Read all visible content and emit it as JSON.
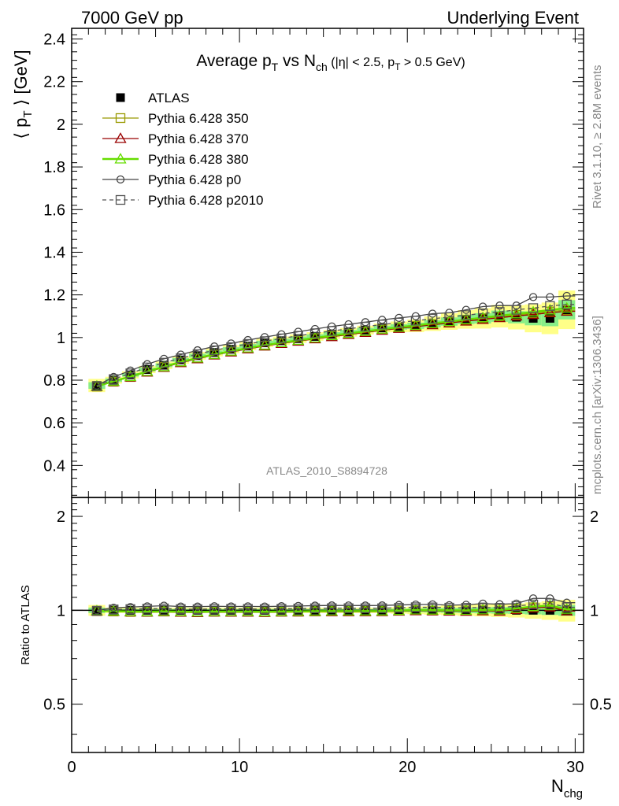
{
  "header": {
    "left": "7000 GeV pp",
    "right": "Underlying Event"
  },
  "title": {
    "main": "Average p",
    "main_sub": "T",
    "vs": " vs N",
    "vs_sub": "ch",
    "cut_open": " (|η| < 2.5, p",
    "cut_sub": "T",
    "cut_close": " > 0.5 GeV)"
  },
  "side": {
    "rivet": "Rivet 3.1.10, ≥ 2.8M events",
    "mcplots": "mcplots.cern.ch [arXiv:1306.3436]"
  },
  "watermark": "ATLAS_2010_S8894728",
  "chart_data": {
    "type": "scatter",
    "main": {
      "ylabel": "⟨ p_T ⟩ [GeV]",
      "ylabel_parts": [
        "⟨ p",
        "T",
        " ⟩ [GeV]"
      ],
      "ylim": [
        0.25,
        2.45
      ],
      "yticks": [
        0.4,
        0.6,
        0.8,
        1.0,
        1.2,
        1.4,
        1.6,
        1.8,
        2.0,
        2.2,
        2.4
      ],
      "ytick_labels": [
        "0.4",
        "0.6",
        "0.8",
        "1",
        "1.2",
        "1.4",
        "1.6",
        "1.8",
        "2",
        "2.2",
        "2.4"
      ]
    },
    "ratio": {
      "ylabel": "Ratio to ATLAS",
      "ylim": [
        0.35,
        2.3
      ],
      "log_scale": true,
      "yticks": [
        0.5,
        1,
        2
      ],
      "ytick_labels": [
        "0.5",
        "1",
        "2"
      ]
    },
    "x": {
      "label": "N_chg",
      "label_parts": [
        "N",
        "chg"
      ],
      "xlim": [
        0,
        30.5
      ],
      "xticks": [
        0,
        10,
        20,
        30
      ],
      "xtick_labels": [
        "0",
        "10",
        "20",
        "30"
      ],
      "values": [
        1.5,
        2.5,
        3.5,
        4.5,
        5.5,
        6.5,
        7.5,
        8.5,
        9.5,
        10.5,
        11.5,
        12.5,
        13.5,
        14.5,
        15.5,
        16.5,
        17.5,
        18.5,
        19.5,
        20.5,
        21.5,
        22.5,
        23.5,
        24.5,
        25.5,
        26.5,
        27.5,
        28.5,
        29.5
      ]
    },
    "series": [
      {
        "name": "ATLAS",
        "color": "#000000",
        "marker": "filled-square",
        "line": "none",
        "values": [
          0.775,
          0.8,
          0.825,
          0.85,
          0.87,
          0.895,
          0.915,
          0.93,
          0.945,
          0.96,
          0.975,
          0.985,
          0.995,
          1.005,
          1.015,
          1.025,
          1.035,
          1.045,
          1.05,
          1.055,
          1.065,
          1.075,
          1.085,
          1.09,
          1.1,
          1.095,
          1.09,
          1.09,
          1.13
        ],
        "band_inner_color": "#88ee88",
        "band_outer_color": "#ffff88"
      },
      {
        "name": "Pythia 6.428 350",
        "color": "#999900",
        "marker": "open-square",
        "line": "solid",
        "values": [
          0.77,
          0.793,
          0.815,
          0.84,
          0.862,
          0.885,
          0.903,
          0.92,
          0.935,
          0.95,
          0.962,
          0.975,
          0.985,
          0.997,
          1.008,
          1.018,
          1.028,
          1.038,
          1.047,
          1.055,
          1.063,
          1.072,
          1.082,
          1.09,
          1.098,
          1.106,
          1.114,
          1.122,
          1.128
        ]
      },
      {
        "name": "Pythia 6.428 370",
        "color": "#990000",
        "marker": "open-triangle",
        "line": "solid",
        "values": [
          0.77,
          0.793,
          0.815,
          0.838,
          0.86,
          0.882,
          0.9,
          0.918,
          0.932,
          0.947,
          0.96,
          0.972,
          0.983,
          0.994,
          1.004,
          1.014,
          1.024,
          1.034,
          1.043,
          1.051,
          1.06,
          1.068,
          1.077,
          1.085,
          1.093,
          1.101,
          1.108,
          1.116,
          1.123
        ]
      },
      {
        "name": "Pythia 6.428 380",
        "color": "#66dd00",
        "marker": "open-triangle",
        "line": "solid-thick",
        "values": [
          0.772,
          0.795,
          0.817,
          0.841,
          0.863,
          0.886,
          0.904,
          0.921,
          0.936,
          0.951,
          0.964,
          0.976,
          0.987,
          0.998,
          1.009,
          1.019,
          1.029,
          1.039,
          1.048,
          1.057,
          1.066,
          1.075,
          1.084,
          1.093,
          1.102,
          1.111,
          1.12,
          1.129,
          1.138
        ]
      },
      {
        "name": "Pythia 6.428 p0",
        "color": "#444444",
        "marker": "open-circle",
        "line": "solid",
        "values": [
          0.775,
          0.815,
          0.845,
          0.875,
          0.9,
          0.92,
          0.94,
          0.958,
          0.972,
          0.988,
          1.002,
          1.015,
          1.027,
          1.04,
          1.052,
          1.062,
          1.072,
          1.083,
          1.092,
          1.1,
          1.112,
          1.116,
          1.13,
          1.145,
          1.15,
          1.15,
          1.19,
          1.19,
          1.195
        ]
      },
      {
        "name": "Pythia 6.428 p2010",
        "color": "#555555",
        "marker": "open-square",
        "line": "dashed",
        "values": [
          0.772,
          0.805,
          0.832,
          0.86,
          0.882,
          0.903,
          0.922,
          0.94,
          0.955,
          0.97,
          0.983,
          0.996,
          1.008,
          1.02,
          1.031,
          1.041,
          1.051,
          1.061,
          1.07,
          1.079,
          1.088,
          1.096,
          1.105,
          1.113,
          1.12,
          1.13,
          1.138,
          1.148,
          1.155
        ]
      }
    ],
    "band_half_width": [
      0.02,
      0.01,
      0.01,
      0.01,
      0.01,
      0.01,
      0.01,
      0.01,
      0.01,
      0.01,
      0.01,
      0.01,
      0.01,
      0.01,
      0.01,
      0.01,
      0.01,
      0.01,
      0.012,
      0.014,
      0.016,
      0.018,
      0.02,
      0.022,
      0.024,
      0.026,
      0.03,
      0.034,
      0.04
    ],
    "legend_location": "upper-left"
  }
}
